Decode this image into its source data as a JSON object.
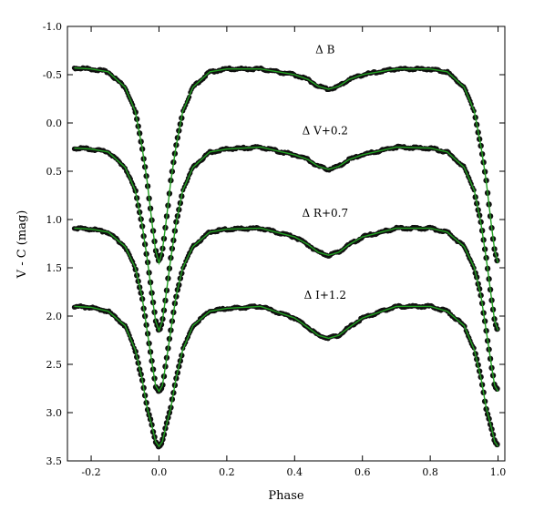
{
  "chart_data": {
    "type": "scatter",
    "xlabel": "Phase",
    "ylabel": "V - C (mag)",
    "xlim": [
      -0.27,
      1.02
    ],
    "ylim": [
      -1.0,
      3.5
    ],
    "y_inverted": true,
    "xticks": [
      {
        "value": -0.2,
        "label": "-0.2"
      },
      {
        "value": 0.0,
        "label": "0.0"
      },
      {
        "value": 0.2,
        "label": "0.2"
      },
      {
        "value": 0.4,
        "label": "0.4"
      },
      {
        "value": 0.6,
        "label": "0.6"
      },
      {
        "value": 0.8,
        "label": "0.8"
      },
      {
        "value": 1.0,
        "label": "1.0"
      }
    ],
    "yticks": [
      {
        "value": -1.0,
        "label": "-1.0"
      },
      {
        "value": -0.5,
        "label": "-0.5"
      },
      {
        "value": 0.0,
        "label": "0.0"
      },
      {
        "value": 0.5,
        "label": "0.5"
      },
      {
        "value": 1.0,
        "label": "1.0"
      },
      {
        "value": 1.5,
        "label": "1.5"
      },
      {
        "value": 2.0,
        "label": "2.0"
      },
      {
        "value": 2.5,
        "label": "2.5"
      },
      {
        "value": 3.0,
        "label": "3.0"
      },
      {
        "value": 3.5,
        "label": "3.5"
      }
    ],
    "marker_color": "#111111",
    "fit_color": "#22a022",
    "series": [
      {
        "label": "Δ B",
        "label_x": 0.49,
        "label_y": -0.72,
        "phase": [
          -0.25,
          -0.2,
          -0.15,
          -0.1,
          -0.07,
          -0.05,
          -0.035,
          -0.02,
          -0.01,
          0.0,
          0.01,
          0.02,
          0.035,
          0.05,
          0.07,
          0.1,
          0.15,
          0.2,
          0.3,
          0.4,
          0.44,
          0.47,
          0.5,
          0.53,
          0.56,
          0.6,
          0.7,
          0.8,
          0.85,
          0.9,
          0.93,
          0.95,
          0.965,
          0.98,
          0.99,
          1.0
        ],
        "mag": [
          -0.57,
          -0.56,
          -0.53,
          -0.37,
          -0.12,
          0.25,
          0.6,
          1.05,
          1.32,
          1.45,
          1.32,
          1.05,
          0.6,
          0.25,
          -0.12,
          -0.37,
          -0.53,
          -0.56,
          -0.56,
          -0.5,
          -0.45,
          -0.38,
          -0.35,
          -0.38,
          -0.45,
          -0.5,
          -0.56,
          -0.56,
          -0.53,
          -0.37,
          -0.12,
          0.25,
          0.6,
          1.05,
          1.32,
          1.45
        ]
      },
      {
        "label": "Δ V+0.2",
        "label_x": 0.49,
        "label_y": 0.12,
        "phase": [
          -0.25,
          -0.2,
          -0.15,
          -0.1,
          -0.07,
          -0.05,
          -0.035,
          -0.02,
          -0.01,
          0.0,
          0.01,
          0.02,
          0.035,
          0.05,
          0.07,
          0.1,
          0.15,
          0.2,
          0.3,
          0.4,
          0.44,
          0.47,
          0.5,
          0.53,
          0.56,
          0.6,
          0.7,
          0.8,
          0.85,
          0.9,
          0.93,
          0.95,
          0.965,
          0.98,
          0.99,
          1.0
        ],
        "mag": [
          0.26,
          0.27,
          0.3,
          0.46,
          0.7,
          1.05,
          1.4,
          1.8,
          2.05,
          2.15,
          2.05,
          1.8,
          1.4,
          1.05,
          0.7,
          0.46,
          0.3,
          0.27,
          0.25,
          0.33,
          0.38,
          0.45,
          0.48,
          0.45,
          0.38,
          0.33,
          0.25,
          0.26,
          0.3,
          0.46,
          0.7,
          1.05,
          1.4,
          1.8,
          2.05,
          2.15
        ]
      },
      {
        "label": "Δ R+0.7",
        "label_x": 0.49,
        "label_y": 0.97,
        "phase": [
          -0.25,
          -0.2,
          -0.15,
          -0.1,
          -0.07,
          -0.05,
          -0.035,
          -0.02,
          -0.01,
          0.0,
          0.01,
          0.02,
          0.035,
          0.05,
          0.07,
          0.1,
          0.15,
          0.2,
          0.3,
          0.4,
          0.44,
          0.47,
          0.5,
          0.53,
          0.56,
          0.6,
          0.7,
          0.8,
          0.85,
          0.9,
          0.93,
          0.95,
          0.965,
          0.98,
          0.99,
          1.0
        ],
        "mag": [
          1.09,
          1.1,
          1.13,
          1.28,
          1.5,
          1.8,
          2.15,
          2.5,
          2.72,
          2.78,
          2.72,
          2.5,
          2.15,
          1.8,
          1.5,
          1.28,
          1.13,
          1.1,
          1.09,
          1.18,
          1.26,
          1.34,
          1.37,
          1.34,
          1.26,
          1.18,
          1.09,
          1.09,
          1.13,
          1.28,
          1.5,
          1.8,
          2.15,
          2.5,
          2.72,
          2.78
        ]
      },
      {
        "label": "Δ I+1.2",
        "label_x": 0.49,
        "label_y": 1.82,
        "phase": [
          -0.25,
          -0.2,
          -0.15,
          -0.1,
          -0.07,
          -0.05,
          -0.035,
          -0.02,
          -0.01,
          0.0,
          0.01,
          0.02,
          0.035,
          0.05,
          0.07,
          0.1,
          0.15,
          0.2,
          0.3,
          0.4,
          0.44,
          0.47,
          0.5,
          0.53,
          0.56,
          0.6,
          0.7,
          0.8,
          0.85,
          0.9,
          0.93,
          0.95,
          0.965,
          0.98,
          0.99,
          1.0
        ],
        "mag": [
          1.9,
          1.91,
          1.95,
          2.1,
          2.35,
          2.65,
          2.95,
          3.15,
          3.3,
          3.35,
          3.3,
          3.15,
          2.95,
          2.65,
          2.35,
          2.1,
          1.95,
          1.92,
          1.9,
          2.02,
          2.12,
          2.2,
          2.23,
          2.2,
          2.12,
          2.02,
          1.9,
          1.9,
          1.95,
          2.1,
          2.35,
          2.65,
          2.95,
          3.15,
          3.3,
          3.35
        ]
      }
    ]
  }
}
